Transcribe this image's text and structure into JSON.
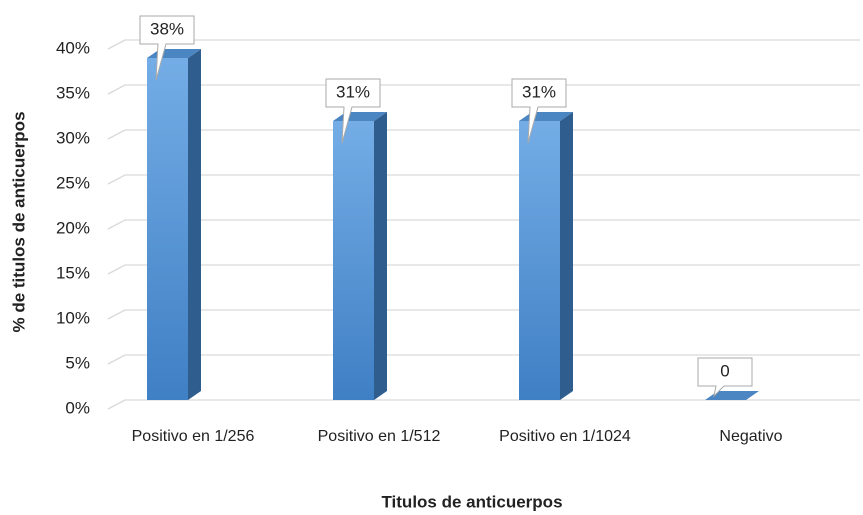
{
  "chart_data": {
    "type": "bar3d",
    "x_label": "Titulos de anticuerpos",
    "y_label": "% de titulos de anticuerpos",
    "categories": [
      "Positivo en 1/256",
      "Positivo en 1/512",
      "Positivo en 1/1024",
      "Negativo"
    ],
    "values": [
      38,
      31,
      31,
      0
    ],
    "value_labels": [
      "38%",
      "31%",
      "31%",
      "0"
    ],
    "color": "#4a8ad4",
    "ylim": [
      0,
      40
    ],
    "yticks": [
      {
        "value": 0,
        "label": "0%"
      },
      {
        "value": 5,
        "label": "5%"
      },
      {
        "value": 10,
        "label": "10%"
      },
      {
        "value": 15,
        "label": "15%"
      },
      {
        "value": 20,
        "label": "20%"
      },
      {
        "value": 25,
        "label": "25%"
      },
      {
        "value": 30,
        "label": "30%"
      },
      {
        "value": 35,
        "label": "35%"
      },
      {
        "value": 40,
        "label": "40%"
      }
    ],
    "grid": true
  }
}
